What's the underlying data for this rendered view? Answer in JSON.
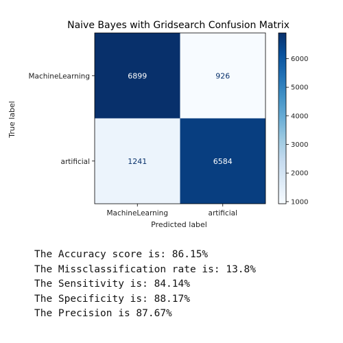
{
  "chart_data": {
    "type": "heatmap",
    "title": "Naive Bayes with Gridsearch Confusion Matrix",
    "xlabel": "Predicted label",
    "ylabel": "True label",
    "x_categories": [
      "MachineLearning",
      "artificial"
    ],
    "y_categories": [
      "MachineLearning",
      "artificial"
    ],
    "values": [
      [
        6899,
        926
      ],
      [
        1241,
        6584
      ]
    ],
    "colormap": "Blues",
    "colorbar": {
      "ticks": [
        1000,
        2000,
        3000,
        4000,
        5000,
        6000
      ],
      "range": [
        926,
        6899
      ]
    },
    "colors": {
      "dark": "#08306b",
      "light": "#f7fbff"
    }
  },
  "metrics": [
    "The Accuracy score is: 86.15%",
    "The Missclassification rate is: 13.8%",
    "The Sensitivity is: 84.14%",
    "The Specificity is: 88.17%",
    "The Precision is 87.67%"
  ]
}
